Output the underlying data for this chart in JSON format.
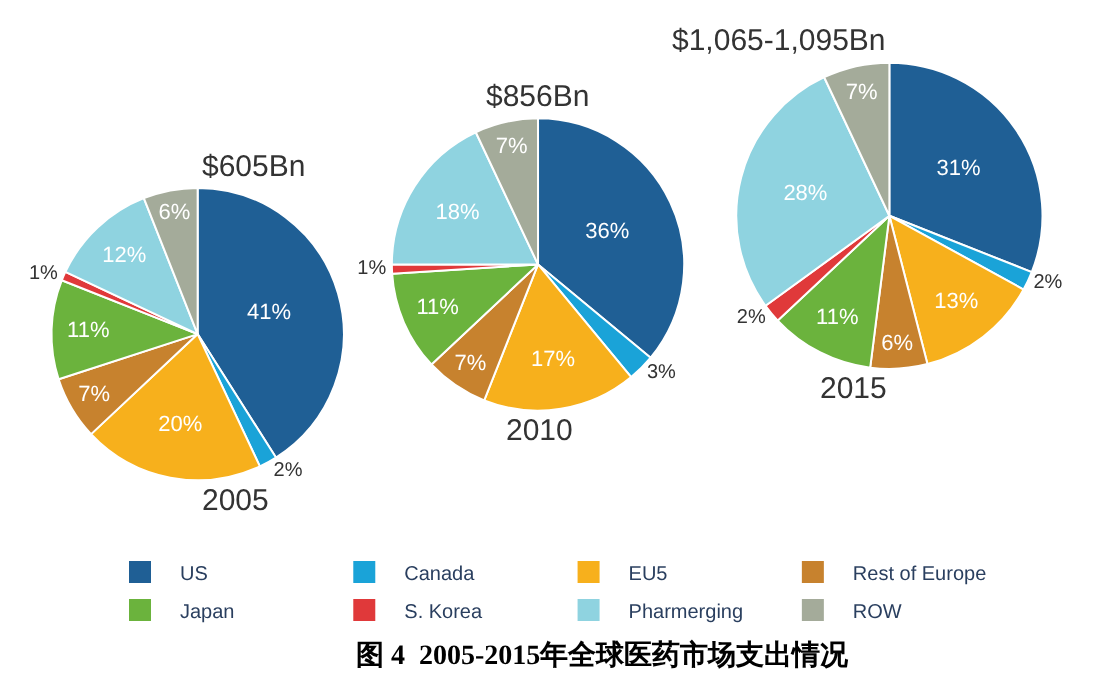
{
  "chart_data": [
    {
      "type": "pie",
      "title": "$605Bn",
      "annotations": [
        "2005"
      ],
      "legend": "bottom",
      "categories": [
        "US",
        "Canada",
        "EU5",
        "Rest of Europe",
        "Japan",
        "S. Korea",
        "Pharmerging",
        "ROW"
      ],
      "values": [
        41,
        2,
        20,
        7,
        11,
        1,
        12,
        6
      ],
      "value_labels": [
        "41%",
        "2%",
        "20%",
        "7%",
        "11%",
        "1%",
        "12%",
        "6%"
      ],
      "colors": [
        "#1f5f95",
        "#1aa3d8",
        "#f7b01c",
        "#c7822e",
        "#6bb33d",
        "#e0393a",
        "#8fd3e0",
        "#a4ab9a"
      ]
    },
    {
      "type": "pie",
      "title": "$856Bn",
      "annotations": [
        "2010"
      ],
      "categories": [
        null,
        null,
        null,
        null,
        null,
        null,
        null,
        null
      ],
      "values": [
        36,
        3,
        17,
        7,
        11,
        1,
        18,
        7
      ],
      "value_labels": [
        "36%",
        "3%",
        "17%",
        "7%",
        "11%",
        "1%",
        "18%",
        "7%"
      ],
      "colors": [
        "#1f5f95",
        "#1aa3d8",
        "#f7b01c",
        "#c7822e",
        "#6bb33d",
        "#e0393a",
        "#8fd3e0",
        "#a4ab9a"
      ]
    },
    {
      "type": "pie",
      "title": "$1,065-1,095Bn",
      "annotations": [
        "2015",
        "图 4  2005-2015年全球医药市场支出情况"
      ],
      "categories": [
        null,
        null,
        null,
        null,
        null,
        null,
        null,
        null
      ],
      "values": [
        31,
        2,
        13,
        6,
        11,
        2,
        28,
        7
      ],
      "value_labels": [
        "31%",
        "2%",
        "13%",
        "6%",
        "11%",
        "2%",
        "28%",
        "7%"
      ],
      "colors": [
        "#1f5f95",
        "#1aa3d8",
        "#f7b01c",
        "#c7822e",
        "#6bb33d",
        "#e0393a",
        "#8fd3e0",
        "#a4ab9a"
      ]
    }
  ]
}
